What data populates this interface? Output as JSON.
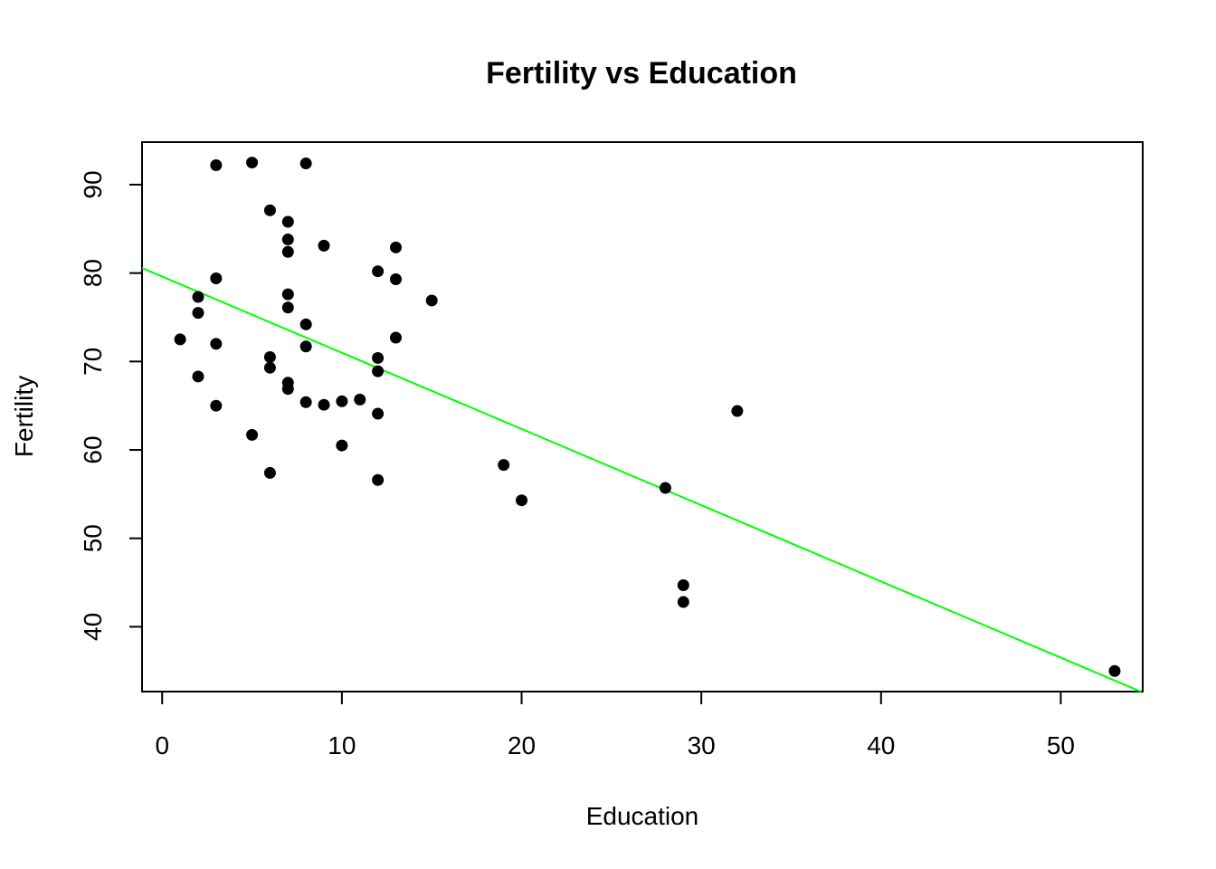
{
  "chart_data": {
    "type": "scatter",
    "title": "Fertility vs Education",
    "xlabel": "Education",
    "ylabel": "Fertility",
    "xlim": [
      -1.12,
      54.56
    ],
    "ylim": [
      32.67,
      94.81
    ],
    "xticks": [
      "0",
      "10",
      "20",
      "30",
      "40",
      "50"
    ],
    "yticks": [
      "40",
      "50",
      "60",
      "70",
      "80",
      "90"
    ],
    "grid": false,
    "colors": {
      "points": "#000000",
      "fit_line": "#00ff00",
      "frame": "#000000"
    },
    "fit_line": {
      "intercept": 79.61,
      "slope": -0.862
    },
    "points": [
      {
        "x": 1,
        "y": 72.5
      },
      {
        "x": 2,
        "y": 77.3
      },
      {
        "x": 2,
        "y": 75.5
      },
      {
        "x": 2,
        "y": 68.3
      },
      {
        "x": 3,
        "y": 92.2
      },
      {
        "x": 3,
        "y": 79.4
      },
      {
        "x": 3,
        "y": 72.0
      },
      {
        "x": 3,
        "y": 65.0
      },
      {
        "x": 5,
        "y": 92.5
      },
      {
        "x": 5,
        "y": 61.7
      },
      {
        "x": 6,
        "y": 87.1
      },
      {
        "x": 6,
        "y": 70.5
      },
      {
        "x": 6,
        "y": 69.3
      },
      {
        "x": 6,
        "y": 57.4
      },
      {
        "x": 7,
        "y": 85.8
      },
      {
        "x": 7,
        "y": 83.8
      },
      {
        "x": 7,
        "y": 82.4
      },
      {
        "x": 7,
        "y": 77.6
      },
      {
        "x": 7,
        "y": 76.1
      },
      {
        "x": 7,
        "y": 67.6
      },
      {
        "x": 7,
        "y": 66.9
      },
      {
        "x": 8,
        "y": 92.4
      },
      {
        "x": 8,
        "y": 74.2
      },
      {
        "x": 8,
        "y": 71.7
      },
      {
        "x": 8,
        "y": 65.4
      },
      {
        "x": 9,
        "y": 83.1
      },
      {
        "x": 9,
        "y": 65.1
      },
      {
        "x": 10,
        "y": 65.5
      },
      {
        "x": 10,
        "y": 60.5
      },
      {
        "x": 11,
        "y": 65.7
      },
      {
        "x": 12,
        "y": 80.2
      },
      {
        "x": 12,
        "y": 70.4
      },
      {
        "x": 12,
        "y": 68.9
      },
      {
        "x": 12,
        "y": 64.1
      },
      {
        "x": 12,
        "y": 56.6
      },
      {
        "x": 13,
        "y": 82.9
      },
      {
        "x": 13,
        "y": 79.3
      },
      {
        "x": 13,
        "y": 72.7
      },
      {
        "x": 15,
        "y": 76.9
      },
      {
        "x": 19,
        "y": 58.3
      },
      {
        "x": 20,
        "y": 54.3
      },
      {
        "x": 28,
        "y": 55.7
      },
      {
        "x": 29,
        "y": 44.7
      },
      {
        "x": 29,
        "y": 42.8
      },
      {
        "x": 32,
        "y": 64.4
      },
      {
        "x": 53,
        "y": 35.0
      }
    ]
  }
}
